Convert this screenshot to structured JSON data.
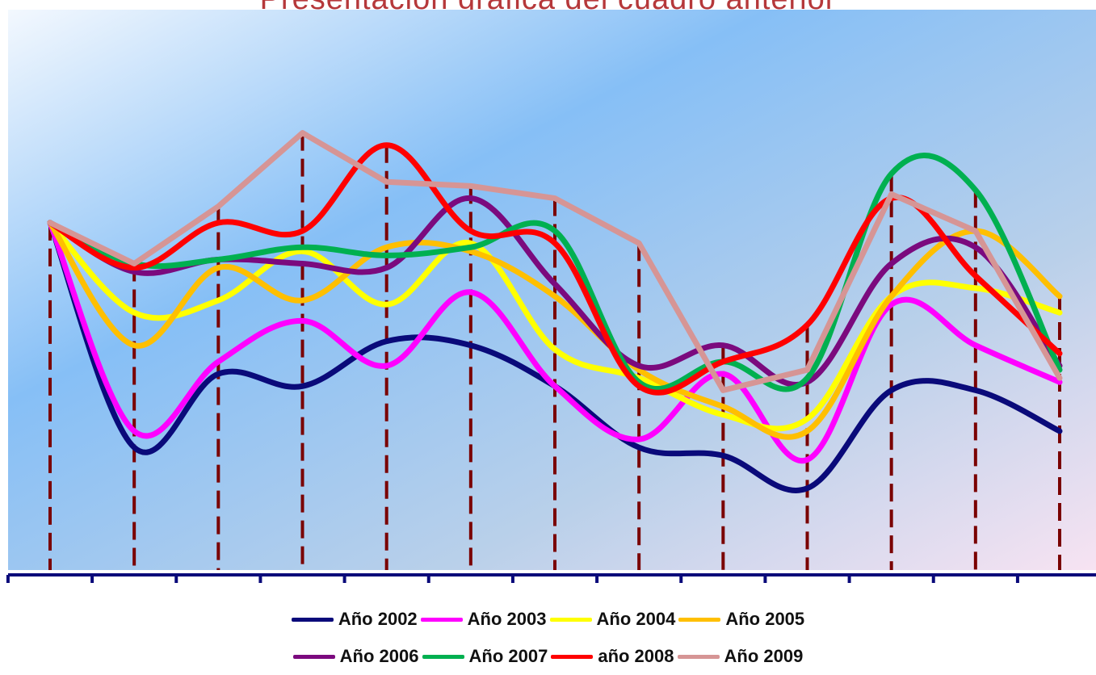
{
  "chart_data": {
    "type": "line",
    "title": "Presentación gráfica del cuadro anterior",
    "xlabel": "",
    "ylabel": "",
    "categories": [
      "",
      "",
      "",
      "",
      "",
      "",
      "",
      "",
      "",
      "",
      "",
      "",
      ""
    ],
    "ylim": [
      0,
      100
    ],
    "grid": false,
    "legend": "bottom",
    "series": [
      {
        "name": "Año 2002",
        "color": "#0a0a7a",
        "smooth": true,
        "values": [
          85,
          30,
          48,
          45,
          56,
          55,
          45,
          30,
          28,
          20,
          44,
          44,
          34
        ]
      },
      {
        "name": "Año 2003",
        "color": "#ff00ff",
        "smooth": true,
        "values": [
          85,
          34,
          51,
          61,
          50,
          68,
          45,
          32,
          48,
          27,
          65,
          55,
          46
        ]
      },
      {
        "name": "Año 2004",
        "color": "#ffff00",
        "smooth": true,
        "values": [
          85,
          63,
          66,
          78,
          65,
          80,
          54,
          47,
          38,
          37,
          67,
          69,
          63
        ]
      },
      {
        "name": "Año 2005",
        "color": "#ffbf00",
        "smooth": true,
        "values": [
          85,
          55,
          74,
          66,
          79,
          78,
          67,
          49,
          40,
          34,
          67,
          83,
          67
        ]
      },
      {
        "name": "Año 2006",
        "color": "#7b0a7e",
        "smooth": true,
        "values": [
          85,
          73,
          76,
          75,
          74,
          91,
          70,
          50,
          55,
          46,
          75,
          79,
          50
        ]
      },
      {
        "name": "Año 2007",
        "color": "#00b050",
        "smooth": true,
        "values": [
          85,
          75,
          76,
          79,
          77,
          79,
          83,
          46,
          51,
          47,
          97,
          93,
          49
        ]
      },
      {
        "name": "año 2008",
        "color": "#ff0000",
        "smooth": true,
        "values": [
          85,
          74,
          85,
          83,
          104,
          83,
          80,
          45,
          51,
          60,
          91,
          72,
          53
        ]
      },
      {
        "name": "Año 2009",
        "color": "#d69595",
        "smooth": false,
        "values": [
          85,
          75,
          89,
          107,
          95,
          94,
          91,
          80,
          44,
          49,
          92,
          83,
          47
        ]
      }
    ]
  }
}
